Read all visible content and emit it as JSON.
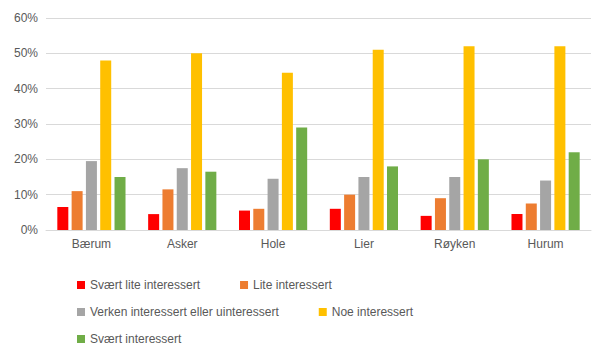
{
  "chart_data": {
    "type": "bar",
    "categories": [
      "Bærum",
      "Asker",
      "Hole",
      "Lier",
      "Røyken",
      "Hurum"
    ],
    "series": [
      {
        "name": "Svært lite interessert",
        "color": "#ff0000",
        "values": [
          6.5,
          4.5,
          5.5,
          6,
          4,
          4.5
        ]
      },
      {
        "name": "Lite interessert",
        "color": "#ed7d31",
        "values": [
          11,
          11.5,
          6,
          10,
          9,
          7.5
        ]
      },
      {
        "name": "Verken interessert eller uinteressert",
        "color": "#a5a5a5",
        "values": [
          19.5,
          17.5,
          14.5,
          15,
          15,
          14
        ]
      },
      {
        "name": "Noe interessert",
        "color": "#ffc000",
        "values": [
          48,
          50,
          44.5,
          51,
          52,
          52
        ]
      },
      {
        "name": "Svært interessert",
        "color": "#70ad47",
        "values": [
          15,
          16.5,
          29,
          18,
          20,
          22
        ]
      }
    ],
    "ylim": [
      0,
      60
    ],
    "yticks": [
      {
        "value": 0,
        "label": "0%"
      },
      {
        "value": 10,
        "label": "10%"
      },
      {
        "value": 20,
        "label": "20%"
      },
      {
        "value": 30,
        "label": "30%"
      },
      {
        "value": 40,
        "label": "40%"
      },
      {
        "value": 50,
        "label": "50%"
      },
      {
        "value": 60,
        "label": "60%"
      }
    ],
    "grid": true,
    "legend": "bottom"
  }
}
